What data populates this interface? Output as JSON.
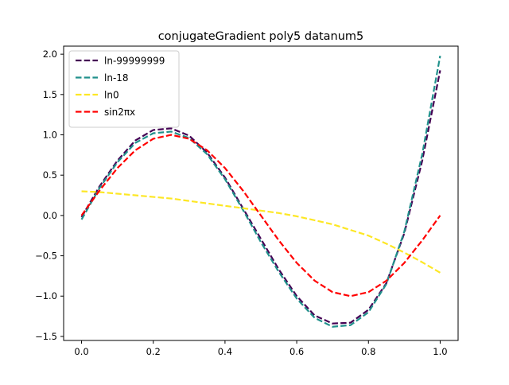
{
  "chart_data": {
    "type": "line",
    "title": "conjugateGradient poly5 datanum5",
    "xlabel": "",
    "ylabel": "",
    "xlim": [
      -0.05,
      1.05
    ],
    "ylim": [
      -1.55,
      2.1
    ],
    "x_ticks": [
      0.0,
      0.2,
      0.4,
      0.6,
      0.8,
      1.0
    ],
    "x_tick_labels": [
      "0.0",
      "0.2",
      "0.4",
      "0.6",
      "0.8",
      "1.0"
    ],
    "y_ticks": [
      -1.5,
      -1.0,
      -0.5,
      0.0,
      0.5,
      1.0,
      1.5,
      2.0
    ],
    "y_tick_labels": [
      "−1.5",
      "−1.0",
      "−0.5",
      "0.0",
      "0.5",
      "1.0",
      "1.5",
      "2.0"
    ],
    "grid": false,
    "legend_position": "top-left",
    "x": [
      0.0,
      0.05,
      0.1,
      0.15,
      0.2,
      0.25,
      0.3,
      0.35,
      0.4,
      0.45,
      0.5,
      0.55,
      0.6,
      0.65,
      0.7,
      0.75,
      0.8,
      0.85,
      0.9,
      0.95,
      1.0
    ],
    "series": [
      {
        "name": "ln-99999999",
        "color": "#440154",
        "style": "dashed",
        "values": [
          -0.02,
          0.36,
          0.68,
          0.93,
          1.06,
          1.08,
          0.99,
          0.78,
          0.47,
          0.09,
          -0.29,
          -0.67,
          -1.0,
          -1.24,
          -1.34,
          -1.33,
          -1.17,
          -0.84,
          -0.22,
          0.68,
          1.8
        ]
      },
      {
        "name": "ln-18",
        "color": "#21918c",
        "style": "dashed",
        "values": [
          -0.05,
          0.34,
          0.66,
          0.9,
          1.02,
          1.04,
          0.96,
          0.76,
          0.45,
          0.07,
          -0.33,
          -0.7,
          -1.03,
          -1.27,
          -1.38,
          -1.36,
          -1.2,
          -0.85,
          -0.2,
          0.76,
          1.98
        ]
      },
      {
        "name": "ln0",
        "color": "#fde725",
        "style": "dashed",
        "values": [
          0.3,
          0.29,
          0.27,
          0.25,
          0.23,
          0.21,
          0.18,
          0.15,
          0.12,
          0.09,
          0.06,
          0.03,
          -0.01,
          -0.06,
          -0.11,
          -0.18,
          -0.25,
          -0.35,
          -0.46,
          -0.58,
          -0.71
        ]
      },
      {
        "name": "sin2πx",
        "color": "#ff0000",
        "style": "dashed",
        "values": [
          0.0,
          0.309,
          0.588,
          0.809,
          0.951,
          1.0,
          0.951,
          0.809,
          0.588,
          0.309,
          0.0,
          -0.309,
          -0.588,
          -0.809,
          -0.951,
          -1.0,
          -0.951,
          -0.809,
          -0.588,
          -0.309,
          0.0
        ]
      }
    ]
  }
}
